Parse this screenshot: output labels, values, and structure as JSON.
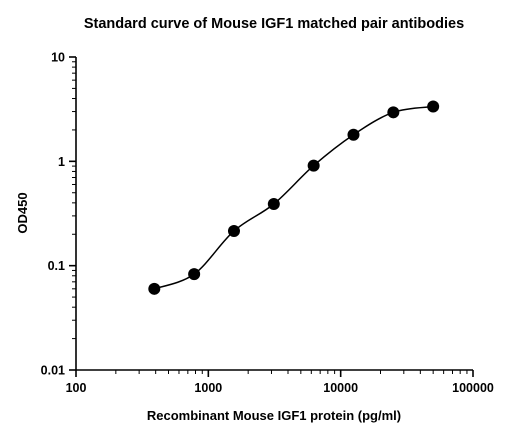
{
  "chart_data": {
    "type": "scatter",
    "title": "Standard curve of Mouse IGF1 matched pair antibodies",
    "xlabel": "Recombinant Mouse IGF1 protein (pg/ml)",
    "ylabel": "OD450",
    "x_scale": "log",
    "y_scale": "log",
    "xlim": [
      100,
      100000
    ],
    "ylim": [
      0.01,
      10
    ],
    "x_ticks": [
      "100",
      "1000",
      "10000",
      "100000"
    ],
    "y_ticks": [
      "0.01",
      "0.1",
      "1",
      "10"
    ],
    "grid": false,
    "has_fit_curve": true,
    "series": [
      {
        "points": [
          {
            "x": 390.6,
            "y": 0.06
          },
          {
            "x": 781.25,
            "y": 0.083
          },
          {
            "x": 1562.5,
            "y": 0.215
          },
          {
            "x": 3125,
            "y": 0.39
          },
          {
            "x": 6250,
            "y": 0.91
          },
          {
            "x": 12500,
            "y": 1.8
          },
          {
            "x": 25000,
            "y": 2.95
          },
          {
            "x": 50000,
            "y": 3.35
          }
        ]
      }
    ],
    "colors": {
      "marker": "#000000",
      "curve": "#000000",
      "axis": "#000000"
    }
  }
}
